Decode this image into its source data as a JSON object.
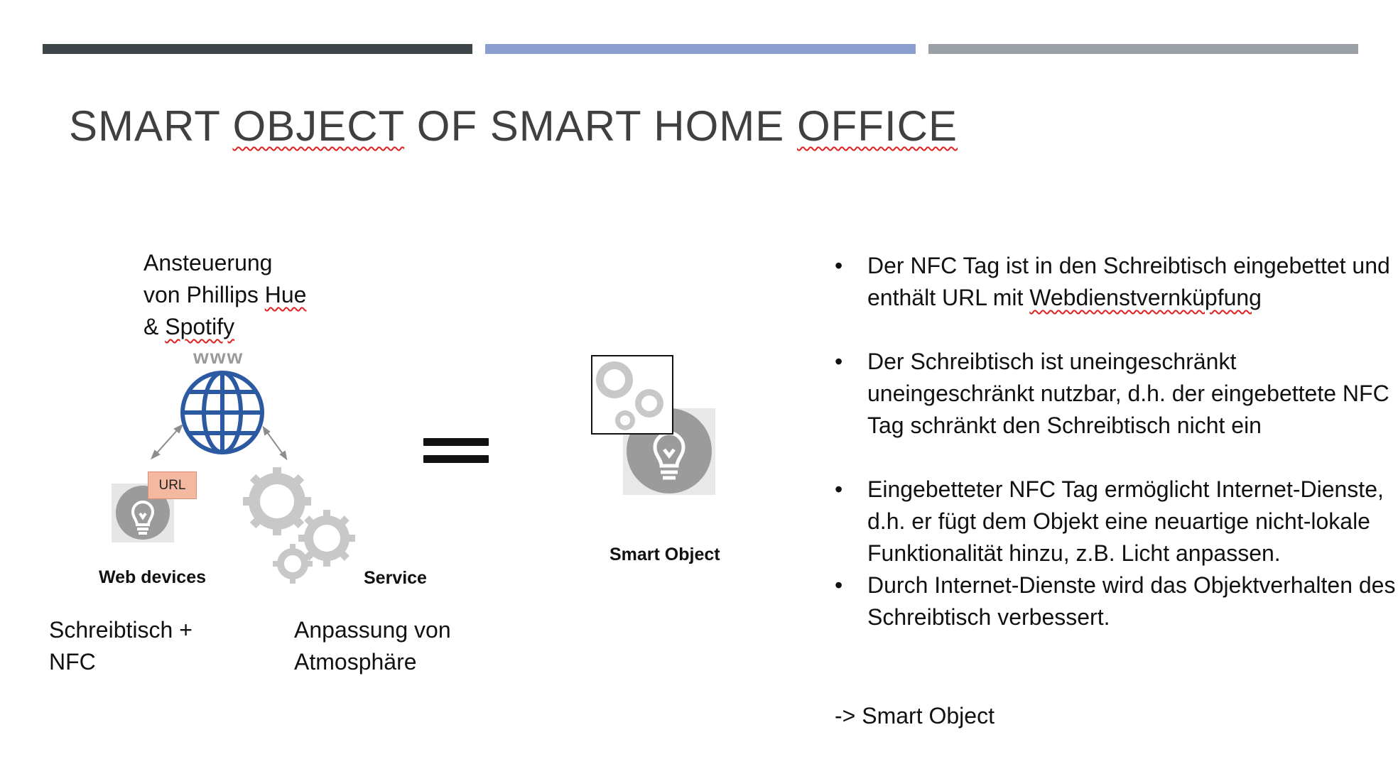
{
  "colors": {
    "bar1": "#3e4549",
    "bar2": "#8a9ecf",
    "bar3": "#9aa0a5",
    "globe": "#2b5aa3",
    "gear": "#c8c8c8",
    "bulb": "#9b9b9b",
    "url_box": "#f4b8a0"
  },
  "slide": {
    "title_parts": [
      "SMART ",
      "OBJECT",
      " OF SMART HOME ",
      "OFFICE"
    ]
  },
  "diagram": {
    "top_label": {
      "line1": "Ansteuerung",
      "line2a": "von Phillips ",
      "line2b": "Hue",
      "line3a": "& ",
      "line3b": "Spotify"
    },
    "www": "www",
    "url": "URL",
    "web_devices": "Web devices",
    "service": "Service",
    "bottom_left": {
      "line1": "Schreibtisch +",
      "line2": "NFC"
    },
    "bottom_mid": {
      "line1": "Anpassung von",
      "line2": "Atmosphäre"
    },
    "equals": "==",
    "smart_object_label": "Smart Object",
    "icons": [
      "globe-icon",
      "lightbulb-icon",
      "gears-icon",
      "smart-object-icon"
    ]
  },
  "bullets": [
    {
      "part1": "Der NFC Tag ist in den Schreibtisch eingebettet und enthält URL mit ",
      "part2": "Webdienstvernküpfung"
    },
    {
      "part1": "Der Schreibtisch ist uneingeschränkt uneingeschränkt nutzbar, d.h. der eingebettete NFC Tag schränkt den Schreibtisch nicht ein",
      "part2": ""
    },
    {
      "part1": "Eingebetteter  NFC Tag ermöglicht Internet-Dienste, d.h. er fügt dem Objekt eine neuartige nicht-lokale Funktionalität hinzu, z.B. Licht anpassen.",
      "part2": ""
    },
    {
      "part1": "Durch Internet-Dienste wird das Objektverhalten des Schreibtisch verbessert.",
      "part2": ""
    }
  ],
  "bullet_symbol": "•",
  "conclusion": "-> Smart Object"
}
